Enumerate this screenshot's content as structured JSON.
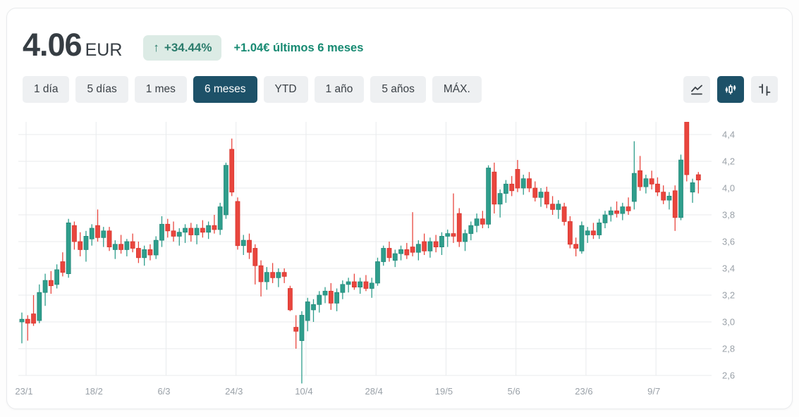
{
  "header": {
    "price": "4.06",
    "currency": "EUR",
    "badge_arrow": "↑",
    "change_percent": "+34.44%",
    "change_text": "+1.04€ últimos 6 meses"
  },
  "ranges": {
    "items": [
      {
        "label": "1 día"
      },
      {
        "label": "5 días"
      },
      {
        "label": "1 mes"
      },
      {
        "label": "6 meses"
      },
      {
        "label": "YTD"
      },
      {
        "label": "1 año"
      },
      {
        "label": "5 años"
      },
      {
        "label": "MÁX."
      }
    ],
    "active_label": "6 meses"
  },
  "chart_type_buttons": [
    {
      "name": "line-chart",
      "active": false
    },
    {
      "name": "candlestick-chart",
      "active": true
    },
    {
      "name": "ohlc-bars",
      "active": false
    }
  ],
  "colors": {
    "accent_selected": "#1d5168",
    "badge_bg": "#dcebe5",
    "badge_text": "#2b7c6c",
    "change_text": "#178a72",
    "grid": "#e9ebed",
    "tick_text": "#9aa1a8"
  },
  "chart_data": {
    "type": "candlestick",
    "title": "",
    "xlabel": "",
    "ylabel": "",
    "currency": "EUR",
    "grid": true,
    "legend": false,
    "ylim": [
      2.47,
      4.49
    ],
    "y_ticks": [
      "4,4",
      "4,2",
      "4,0",
      "3,8",
      "3,6",
      "3,4",
      "3,2",
      "3,0",
      "2,8",
      "2,6"
    ],
    "y_tick_values": [
      4.4,
      4.2,
      4.0,
      3.8,
      3.6,
      3.4,
      3.2,
      3.0,
      2.8,
      2.6
    ],
    "x_labels": [
      "23/1",
      "18/2",
      "6/3",
      "24/3",
      "10/4",
      "28/4",
      "19/5",
      "5/6",
      "23/6",
      "9/7"
    ],
    "x_label_candle_indices": [
      0,
      12,
      24,
      36,
      48,
      60,
      72,
      84,
      96,
      108
    ],
    "up_color": "#2f9e8c",
    "down_color": "#e9463e",
    "up_stroke": "#25897b",
    "down_stroke": "#d8362f",
    "candles": [
      [
        3.0,
        3.07,
        2.84,
        3.02
      ],
      [
        3.02,
        3.05,
        2.86,
        2.99
      ],
      [
        3.06,
        3.2,
        2.97,
        2.99
      ],
      [
        3.01,
        3.28,
        2.99,
        3.22
      ],
      [
        3.22,
        3.36,
        3.12,
        3.31
      ],
      [
        3.31,
        3.38,
        3.21,
        3.27
      ],
      [
        3.28,
        3.43,
        3.25,
        3.39
      ],
      [
        3.45,
        3.52,
        3.34,
        3.37
      ],
      [
        3.36,
        3.77,
        3.33,
        3.74
      ],
      [
        3.72,
        3.75,
        3.54,
        3.6
      ],
      [
        3.6,
        3.67,
        3.49,
        3.54
      ],
      [
        3.54,
        3.68,
        3.45,
        3.64
      ],
      [
        3.62,
        3.73,
        3.57,
        3.7
      ],
      [
        3.72,
        3.84,
        3.6,
        3.63
      ],
      [
        3.63,
        3.71,
        3.56,
        3.68
      ],
      [
        3.68,
        3.71,
        3.53,
        3.56
      ],
      [
        3.54,
        3.61,
        3.47,
        3.58
      ],
      [
        3.58,
        3.65,
        3.51,
        3.54
      ],
      [
        3.54,
        3.62,
        3.49,
        3.6
      ],
      [
        3.6,
        3.66,
        3.52,
        3.55
      ],
      [
        3.55,
        3.6,
        3.44,
        3.48
      ],
      [
        3.48,
        3.57,
        3.42,
        3.54
      ],
      [
        3.54,
        3.58,
        3.46,
        3.5
      ],
      [
        3.5,
        3.64,
        3.47,
        3.61
      ],
      [
        3.61,
        3.79,
        3.56,
        3.73
      ],
      [
        3.73,
        3.77,
        3.63,
        3.68
      ],
      [
        3.68,
        3.75,
        3.6,
        3.64
      ],
      [
        3.64,
        3.7,
        3.57,
        3.67
      ],
      [
        3.67,
        3.73,
        3.59,
        3.7
      ],
      [
        3.7,
        3.74,
        3.6,
        3.65
      ],
      [
        3.65,
        3.73,
        3.58,
        3.7
      ],
      [
        3.7,
        3.76,
        3.63,
        3.67
      ],
      [
        3.67,
        3.75,
        3.62,
        3.72
      ],
      [
        3.72,
        3.8,
        3.66,
        3.69
      ],
      [
        3.69,
        3.89,
        3.65,
        3.86
      ],
      [
        3.8,
        4.19,
        3.77,
        4.17
      ],
      [
        4.29,
        4.37,
        3.94,
        3.97
      ],
      [
        3.9,
        3.93,
        3.54,
        3.57
      ],
      [
        3.57,
        3.65,
        3.5,
        3.61
      ],
      [
        3.61,
        3.66,
        3.47,
        3.52
      ],
      [
        3.55,
        3.58,
        3.28,
        3.42
      ],
      [
        3.42,
        3.46,
        3.19,
        3.3
      ],
      [
        3.3,
        3.41,
        3.24,
        3.37
      ],
      [
        3.37,
        3.44,
        3.29,
        3.33
      ],
      [
        3.33,
        3.4,
        3.26,
        3.37
      ],
      [
        3.37,
        3.4,
        3.29,
        3.34
      ],
      [
        3.25,
        3.27,
        3.08,
        3.09
      ],
      [
        2.96,
        3.05,
        2.8,
        2.93
      ],
      [
        2.86,
        3.08,
        2.54,
        3.05
      ],
      [
        3.01,
        3.18,
        2.93,
        3.15
      ],
      [
        3.09,
        3.17,
        3.0,
        3.13
      ],
      [
        3.13,
        3.23,
        3.07,
        3.2
      ],
      [
        3.2,
        3.26,
        3.14,
        3.23
      ],
      [
        3.23,
        3.29,
        3.09,
        3.14
      ],
      [
        3.14,
        3.25,
        3.08,
        3.22
      ],
      [
        3.22,
        3.31,
        3.17,
        3.28
      ],
      [
        3.28,
        3.33,
        3.22,
        3.3
      ],
      [
        3.3,
        3.36,
        3.24,
        3.26
      ],
      [
        3.26,
        3.33,
        3.21,
        3.3
      ],
      [
        3.3,
        3.35,
        3.23,
        3.25
      ],
      [
        3.25,
        3.33,
        3.18,
        3.29
      ],
      [
        3.29,
        3.48,
        3.27,
        3.45
      ],
      [
        3.45,
        3.57,
        3.42,
        3.55
      ],
      [
        3.55,
        3.6,
        3.45,
        3.48
      ],
      [
        3.46,
        3.54,
        3.41,
        3.51
      ],
      [
        3.51,
        3.57,
        3.46,
        3.54
      ],
      [
        3.54,
        3.59,
        3.47,
        3.5
      ],
      [
        3.56,
        3.82,
        3.49,
        3.52
      ],
      [
        3.52,
        3.61,
        3.46,
        3.58
      ],
      [
        3.6,
        3.66,
        3.5,
        3.53
      ],
      [
        3.53,
        3.63,
        3.48,
        3.6
      ],
      [
        3.6,
        3.65,
        3.52,
        3.56
      ],
      [
        3.56,
        3.67,
        3.5,
        3.64
      ],
      [
        3.64,
        3.69,
        3.56,
        3.66
      ],
      [
        3.66,
        3.96,
        3.59,
        3.64
      ],
      [
        3.81,
        3.85,
        3.56,
        3.6
      ],
      [
        3.6,
        3.69,
        3.53,
        3.66
      ],
      [
        3.66,
        3.75,
        3.61,
        3.72
      ],
      [
        3.72,
        3.81,
        3.67,
        3.77
      ],
      [
        3.77,
        3.83,
        3.7,
        3.73
      ],
      [
        3.73,
        4.17,
        3.7,
        4.15
      ],
      [
        4.12,
        4.19,
        3.81,
        3.88
      ],
      [
        3.88,
        3.99,
        3.78,
        3.96
      ],
      [
        3.96,
        4.06,
        3.89,
        4.03
      ],
      [
        4.03,
        4.09,
        3.94,
        3.98
      ],
      [
        4.14,
        4.21,
        3.97,
        4.0
      ],
      [
        4.0,
        4.1,
        3.95,
        4.07
      ],
      [
        4.07,
        4.12,
        3.97,
        4.0
      ],
      [
        4.0,
        4.05,
        3.9,
        3.93
      ],
      [
        3.93,
        4.0,
        3.86,
        3.97
      ],
      [
        3.97,
        4.01,
        3.85,
        3.88
      ],
      [
        3.88,
        3.94,
        3.8,
        3.84
      ],
      [
        3.84,
        3.91,
        3.77,
        3.88
      ],
      [
        3.86,
        3.89,
        3.72,
        3.75
      ],
      [
        3.75,
        3.79,
        3.55,
        3.58
      ],
      [
        3.58,
        3.63,
        3.49,
        3.55
      ],
      [
        3.53,
        3.75,
        3.51,
        3.72
      ],
      [
        3.65,
        3.71,
        3.59,
        3.68
      ],
      [
        3.68,
        3.74,
        3.62,
        3.65
      ],
      [
        3.65,
        3.77,
        3.62,
        3.74
      ],
      [
        3.74,
        3.83,
        3.7,
        3.8
      ],
      [
        3.8,
        3.86,
        3.75,
        3.83
      ],
      [
        3.83,
        3.9,
        3.78,
        3.81
      ],
      [
        3.81,
        3.89,
        3.76,
        3.86
      ],
      [
        3.86,
        3.93,
        3.8,
        3.83
      ],
      [
        3.9,
        4.35,
        3.84,
        4.11
      ],
      [
        4.13,
        4.24,
        3.98,
        4.01
      ],
      [
        4.01,
        4.1,
        3.96,
        4.07
      ],
      [
        4.07,
        4.13,
        3.99,
        4.03
      ],
      [
        4.03,
        4.08,
        3.94,
        3.97
      ],
      [
        3.97,
        4.02,
        3.88,
        3.91
      ],
      [
        3.91,
        3.97,
        3.84,
        3.94
      ],
      [
        3.98,
        4.02,
        3.68,
        3.78
      ],
      [
        3.78,
        4.25,
        3.76,
        4.21
      ],
      [
        4.5,
        4.52,
        4.05,
        4.1
      ],
      [
        3.97,
        4.07,
        3.89,
        4.04
      ],
      [
        4.1,
        4.12,
        3.96,
        4.06
      ]
    ]
  }
}
